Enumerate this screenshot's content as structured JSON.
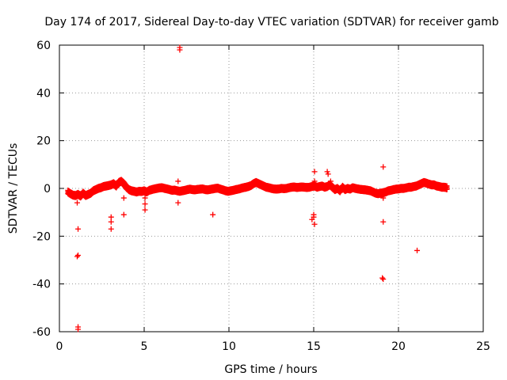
{
  "chart_data": {
    "type": "scatter",
    "title": "Day 174 of 2017, Sidereal Day-to-day VTEC variation (SDTVAR) for receiver gamb",
    "xlabel": "GPS time / hours",
    "ylabel": "SDTVAR / TECUs",
    "xlim": [
      0,
      25
    ],
    "ylim": [
      -60,
      60
    ],
    "xticks": [
      0,
      5,
      10,
      15,
      20,
      25
    ],
    "yticks": [
      -60,
      -40,
      -20,
      0,
      20,
      40,
      60
    ],
    "xtick_labels": [
      "0",
      "5",
      "10",
      "15",
      "20",
      "25"
    ],
    "ytick_labels": [
      "-60",
      "-40",
      "-20",
      "0",
      "20",
      "40",
      "60"
    ],
    "grid": true,
    "marker": "+",
    "color": "#ff0000",
    "series": [
      {
        "name": "SDTVAR",
        "main_band": [
          [
            0.5,
            -1.5
          ],
          [
            0.65,
            -2.2
          ],
          [
            0.8,
            -2.8
          ],
          [
            0.95,
            -3.0
          ],
          [
            1.1,
            -2.5
          ],
          [
            1.25,
            -3.2
          ],
          [
            1.4,
            -2.0
          ],
          [
            1.55,
            -3.0
          ],
          [
            1.7,
            -2.5
          ],
          [
            1.85,
            -2.0
          ],
          [
            2.0,
            -1.0
          ],
          [
            2.15,
            -0.5
          ],
          [
            2.3,
            0.0
          ],
          [
            2.45,
            0.3
          ],
          [
            2.6,
            0.8
          ],
          [
            2.75,
            1.0
          ],
          [
            2.9,
            1.2
          ],
          [
            3.05,
            1.5
          ],
          [
            3.2,
            2.0
          ],
          [
            3.35,
            1.0
          ],
          [
            3.5,
            2.5
          ],
          [
            3.65,
            3.0
          ],
          [
            3.8,
            2.0
          ],
          [
            3.95,
            0.5
          ],
          [
            4.1,
            -0.5
          ],
          [
            4.25,
            -1.0
          ],
          [
            4.4,
            -1.2
          ],
          [
            4.55,
            -1.5
          ],
          [
            4.7,
            -1.2
          ],
          [
            4.85,
            -1.3
          ],
          [
            5.0,
            -1.0
          ],
          [
            5.15,
            -1.5
          ],
          [
            5.3,
            -0.8
          ],
          [
            5.45,
            -0.5
          ],
          [
            5.6,
            -0.2
          ],
          [
            5.75,
            0.0
          ],
          [
            5.9,
            0.2
          ],
          [
            6.05,
            0.3
          ],
          [
            6.2,
            0.0
          ],
          [
            6.35,
            -0.2
          ],
          [
            6.5,
            -0.5
          ],
          [
            6.65,
            -0.8
          ],
          [
            6.8,
            -0.7
          ],
          [
            6.95,
            -1.0
          ],
          [
            7.1,
            -1.2
          ],
          [
            7.25,
            -1.0
          ],
          [
            7.4,
            -0.8
          ],
          [
            7.55,
            -0.5
          ],
          [
            7.7,
            -0.3
          ],
          [
            7.85,
            -0.5
          ],
          [
            8.0,
            -0.6
          ],
          [
            8.15,
            -0.4
          ],
          [
            8.3,
            -0.3
          ],
          [
            8.45,
            -0.2
          ],
          [
            8.6,
            -0.5
          ],
          [
            8.75,
            -0.6
          ],
          [
            8.9,
            -0.4
          ],
          [
            9.05,
            -0.2
          ],
          [
            9.2,
            0.0
          ],
          [
            9.35,
            0.1
          ],
          [
            9.5,
            -0.3
          ],
          [
            9.65,
            -0.6
          ],
          [
            9.8,
            -1.0
          ],
          [
            9.95,
            -1.2
          ],
          [
            10.1,
            -1.0
          ],
          [
            10.25,
            -0.8
          ],
          [
            10.4,
            -0.5
          ],
          [
            10.55,
            -0.3
          ],
          [
            10.7,
            0.0
          ],
          [
            10.85,
            0.3
          ],
          [
            11.0,
            0.5
          ],
          [
            11.15,
            0.8
          ],
          [
            11.3,
            1.2
          ],
          [
            11.45,
            2.0
          ],
          [
            11.6,
            2.5
          ],
          [
            11.75,
            2.0
          ],
          [
            11.9,
            1.5
          ],
          [
            12.05,
            1.0
          ],
          [
            12.2,
            0.5
          ],
          [
            12.35,
            0.3
          ],
          [
            12.5,
            0.0
          ],
          [
            12.65,
            -0.2
          ],
          [
            12.8,
            -0.3
          ],
          [
            12.95,
            -0.2
          ],
          [
            13.1,
            0.0
          ],
          [
            13.25,
            -0.1
          ],
          [
            13.4,
            0.0
          ],
          [
            13.55,
            0.3
          ],
          [
            13.7,
            0.5
          ],
          [
            13.85,
            0.6
          ],
          [
            14.0,
            0.4
          ],
          [
            14.15,
            0.5
          ],
          [
            14.3,
            0.6
          ],
          [
            14.45,
            0.5
          ],
          [
            14.6,
            0.4
          ],
          [
            14.75,
            0.5
          ],
          [
            14.9,
            0.8
          ],
          [
            15.05,
            1.0
          ],
          [
            15.2,
            0.5
          ],
          [
            15.35,
            0.8
          ],
          [
            15.5,
            1.0
          ],
          [
            15.65,
            0.5
          ],
          [
            15.8,
            0.8
          ],
          [
            15.95,
            1.5
          ],
          [
            16.1,
            0.5
          ],
          [
            16.25,
            -0.5
          ],
          [
            16.4,
            0.0
          ],
          [
            16.55,
            -1.0
          ],
          [
            16.7,
            0.5
          ],
          [
            16.85,
            -0.5
          ],
          [
            17.0,
            0.0
          ],
          [
            17.15,
            -0.3
          ],
          [
            17.3,
            0.3
          ],
          [
            17.45,
            0.0
          ],
          [
            17.6,
            -0.2
          ],
          [
            17.75,
            -0.4
          ],
          [
            17.9,
            -0.5
          ],
          [
            18.05,
            -0.6
          ],
          [
            18.2,
            -0.8
          ],
          [
            18.35,
            -1.0
          ],
          [
            18.5,
            -1.5
          ],
          [
            18.65,
            -2.0
          ],
          [
            18.8,
            -2.2
          ],
          [
            18.95,
            -2.0
          ],
          [
            19.1,
            -1.8
          ],
          [
            19.25,
            -1.5
          ],
          [
            19.4,
            -1.0
          ],
          [
            19.55,
            -0.8
          ],
          [
            19.7,
            -0.5
          ],
          [
            19.85,
            -0.3
          ],
          [
            20.0,
            -0.2
          ],
          [
            20.15,
            0.0
          ],
          [
            20.3,
            0.0
          ],
          [
            20.45,
            0.2
          ],
          [
            20.6,
            0.5
          ],
          [
            20.75,
            0.5
          ],
          [
            20.9,
            0.8
          ],
          [
            21.05,
            1.0
          ],
          [
            21.2,
            1.5
          ],
          [
            21.35,
            2.0
          ],
          [
            21.5,
            2.5
          ],
          [
            21.65,
            2.2
          ],
          [
            21.8,
            1.8
          ],
          [
            21.95,
            1.5
          ],
          [
            22.1,
            1.5
          ],
          [
            22.25,
            1.0
          ],
          [
            22.4,
            0.8
          ],
          [
            22.55,
            0.5
          ],
          [
            22.7,
            0.5
          ],
          [
            22.85,
            0.3
          ]
        ],
        "outliers": [
          [
            7.1,
            59
          ],
          [
            7.1,
            58
          ],
          [
            7.0,
            3
          ],
          [
            7.0,
            -6
          ],
          [
            1.1,
            -17
          ],
          [
            1.1,
            -28
          ],
          [
            1.05,
            -28.5
          ],
          [
            1.1,
            -58
          ],
          [
            1.1,
            -59
          ],
          [
            1.05,
            -6
          ],
          [
            3.05,
            -12
          ],
          [
            3.05,
            -14
          ],
          [
            3.05,
            -17
          ],
          [
            3.8,
            -11
          ],
          [
            3.8,
            -4
          ],
          [
            5.05,
            -4
          ],
          [
            5.05,
            -6.5
          ],
          [
            5.05,
            -9
          ],
          [
            9.05,
            -11
          ],
          [
            15.05,
            7
          ],
          [
            15.05,
            3
          ],
          [
            15.0,
            -11
          ],
          [
            15.0,
            -12
          ],
          [
            14.9,
            -13
          ],
          [
            15.05,
            -15
          ],
          [
            15.8,
            7
          ],
          [
            15.85,
            6
          ],
          [
            16.0,
            3
          ],
          [
            19.1,
            9
          ],
          [
            19.1,
            -4
          ],
          [
            19.1,
            -14
          ],
          [
            19.1,
            -38
          ],
          [
            19.05,
            -37.5
          ],
          [
            21.1,
            -26
          ]
        ]
      }
    ]
  }
}
